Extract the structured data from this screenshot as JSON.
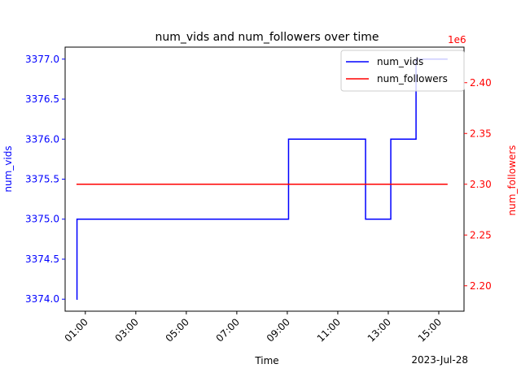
{
  "chart_data": {
    "type": "line",
    "title": "num_vids and num_followers over time",
    "xlabel": "Time",
    "x_offset_label": "2023-Jul-28",
    "x_ticks": [
      "01:00",
      "03:00",
      "05:00",
      "07:00",
      "09:00",
      "11:00",
      "13:00",
      "15:00"
    ],
    "x_tick_hours": [
      1,
      3,
      5,
      7,
      9,
      11,
      13,
      15
    ],
    "xlim_hours": [
      0.2,
      16.0
    ],
    "left_axis": {
      "label": "num_vids",
      "color": "#0000ff",
      "ylim": [
        3373.85,
        3377.15
      ],
      "ticks": [
        "3374.0",
        "3374.5",
        "3375.0",
        "3375.5",
        "3376.0",
        "3376.5",
        "3377.0"
      ],
      "tick_values": [
        3374.0,
        3374.5,
        3375.0,
        3375.5,
        3376.0,
        3376.5,
        3377.0
      ]
    },
    "right_axis": {
      "label": "num_followers",
      "color": "#ff0000",
      "offset_label": "1e6",
      "ylim": [
        2.175,
        2.435
      ],
      "ticks": [
        "2.20",
        "2.25",
        "2.30",
        "2.35",
        "2.40"
      ],
      "tick_values": [
        2.2,
        2.25,
        2.3,
        2.35,
        2.4
      ]
    },
    "series": [
      {
        "name": "num_vids",
        "axis": "left",
        "color": "#0000ff",
        "drawstyle": "steps-post",
        "x_hours": [
          0.65,
          0.67,
          9.05,
          12.1,
          13.1,
          14.1,
          15.35
        ],
        "values": [
          3374,
          3375,
          3376,
          3375,
          3376,
          3377,
          3377
        ]
      },
      {
        "name": "num_followers",
        "axis": "right",
        "color": "#ff0000",
        "x_hours": [
          0.65,
          15.35
        ],
        "values": [
          2.3,
          2.3
        ]
      }
    ],
    "legend": {
      "position": "top-right",
      "entries": [
        "num_vids",
        "num_followers"
      ]
    },
    "grid": false
  }
}
